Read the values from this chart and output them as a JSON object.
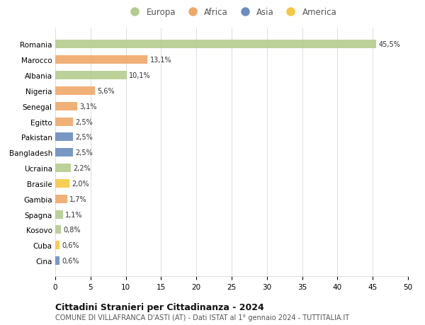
{
  "countries": [
    "Romania",
    "Marocco",
    "Albania",
    "Nigeria",
    "Senegal",
    "Egitto",
    "Pakistan",
    "Bangladesh",
    "Ucraina",
    "Brasile",
    "Gambia",
    "Spagna",
    "Kosovo",
    "Cuba",
    "Cina"
  ],
  "values": [
    45.5,
    13.1,
    10.1,
    5.6,
    3.1,
    2.5,
    2.5,
    2.5,
    2.2,
    2.0,
    1.7,
    1.1,
    0.8,
    0.6,
    0.6
  ],
  "labels": [
    "45,5%",
    "13,1%",
    "10,1%",
    "5,6%",
    "3,1%",
    "2,5%",
    "2,5%",
    "2,5%",
    "2,2%",
    "2,0%",
    "1,7%",
    "1,1%",
    "0,8%",
    "0,6%",
    "0,6%"
  ],
  "continents": [
    "Europa",
    "Africa",
    "Europa",
    "Africa",
    "Africa",
    "Africa",
    "Asia",
    "Asia",
    "Europa",
    "America",
    "Africa",
    "Europa",
    "Europa",
    "America",
    "Asia"
  ],
  "continent_colors": {
    "Europa": "#b5cc8e",
    "Africa": "#f0a868",
    "Asia": "#6b8cbf",
    "America": "#f5c842"
  },
  "legend_order": [
    "Europa",
    "Africa",
    "Asia",
    "America"
  ],
  "title": "Cittadini Stranieri per Cittadinanza - 2024",
  "subtitle": "COMUNE DI VILLAFRANCA D'ASTI (AT) - Dati ISTAT al 1° gennaio 2024 - TUTTITALIA.IT",
  "xlim": [
    0,
    50
  ],
  "xticks": [
    0,
    5,
    10,
    15,
    20,
    25,
    30,
    35,
    40,
    45,
    50
  ],
  "background_color": "#ffffff",
  "grid_color": "#dddddd"
}
